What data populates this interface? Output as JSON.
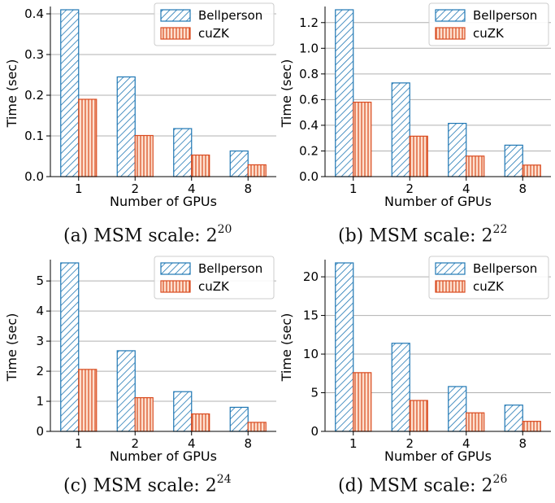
{
  "colors": {
    "bellperson": "#1f77b4",
    "cuzk": "#d94a1e",
    "grid": "#b0b0b0",
    "axis": "#000000"
  },
  "chart_data": [
    {
      "type": "bar",
      "caption": {
        "prefix": "(a) MSM scale: 2",
        "exponent": "20"
      },
      "categories": [
        "1",
        "2",
        "4",
        "8"
      ],
      "series": [
        {
          "name": "Bellperson",
          "values": [
            0.41,
            0.245,
            0.118,
            0.063
          ],
          "pattern": "diagonal"
        },
        {
          "name": "cuZK",
          "values": [
            0.19,
            0.101,
            0.053,
            0.029
          ],
          "pattern": "vertical"
        }
      ],
      "xlabel": "Number of GPUs",
      "ylabel": "Time (sec)",
      "ylim": [
        0,
        0.41
      ],
      "yticks": [
        "0.0",
        "0.1",
        "0.2",
        "0.3",
        "0.4"
      ],
      "ytick_values": [
        0,
        0.1,
        0.2,
        0.3,
        0.4
      ],
      "grid": "horizontal",
      "legend": "top-right"
    },
    {
      "type": "bar",
      "caption": {
        "prefix": "(b) MSM scale: 2",
        "exponent": "22"
      },
      "categories": [
        "1",
        "2",
        "4",
        "8"
      ],
      "series": [
        {
          "name": "Bellperson",
          "values": [
            1.3,
            0.73,
            0.415,
            0.245
          ],
          "pattern": "diagonal"
        },
        {
          "name": "cuZK",
          "values": [
            0.58,
            0.315,
            0.16,
            0.09
          ],
          "pattern": "vertical"
        }
      ],
      "xlabel": "Number of GPUs",
      "ylabel": "Time (sec)",
      "ylim": [
        0,
        1.3
      ],
      "yticks": [
        "0.0",
        "0.2",
        "0.4",
        "0.6",
        "0.8",
        "1.0",
        "1.2"
      ],
      "ytick_values": [
        0,
        0.2,
        0.4,
        0.6,
        0.8,
        1.0,
        1.2
      ],
      "grid": "horizontal",
      "legend": "top-right"
    },
    {
      "type": "bar",
      "caption": {
        "prefix": "(c) MSM scale: 2",
        "exponent": "24"
      },
      "categories": [
        "1",
        "2",
        "4",
        "8"
      ],
      "series": [
        {
          "name": "Bellperson",
          "values": [
            5.6,
            2.68,
            1.32,
            0.8
          ],
          "pattern": "diagonal"
        },
        {
          "name": "cuZK",
          "values": [
            2.06,
            1.12,
            0.58,
            0.3
          ],
          "pattern": "vertical"
        }
      ],
      "xlabel": "Number of GPUs",
      "ylabel": "Time (sec)",
      "ylim": [
        0,
        5.6
      ],
      "yticks": [
        "0",
        "1",
        "2",
        "3",
        "4",
        "5"
      ],
      "ytick_values": [
        0,
        1,
        2,
        3,
        4,
        5
      ],
      "grid": "horizontal",
      "legend": "top-right"
    },
    {
      "type": "bar",
      "caption": {
        "prefix": "(d) MSM scale: 2",
        "exponent": "26"
      },
      "categories": [
        "1",
        "2",
        "4",
        "8"
      ],
      "series": [
        {
          "name": "Bellperson",
          "values": [
            21.8,
            11.4,
            5.8,
            3.4
          ],
          "pattern": "diagonal"
        },
        {
          "name": "cuZK",
          "values": [
            7.6,
            4.0,
            2.4,
            1.3
          ],
          "pattern": "vertical"
        }
      ],
      "xlabel": "Number of GPUs",
      "ylabel": "Time (sec)",
      "ylim": [
        0,
        21.8
      ],
      "yticks": [
        "0",
        "5",
        "10",
        "15",
        "20"
      ],
      "ytick_values": [
        0,
        5,
        10,
        15,
        20
      ],
      "grid": "horizontal",
      "legend": "top-right"
    }
  ]
}
